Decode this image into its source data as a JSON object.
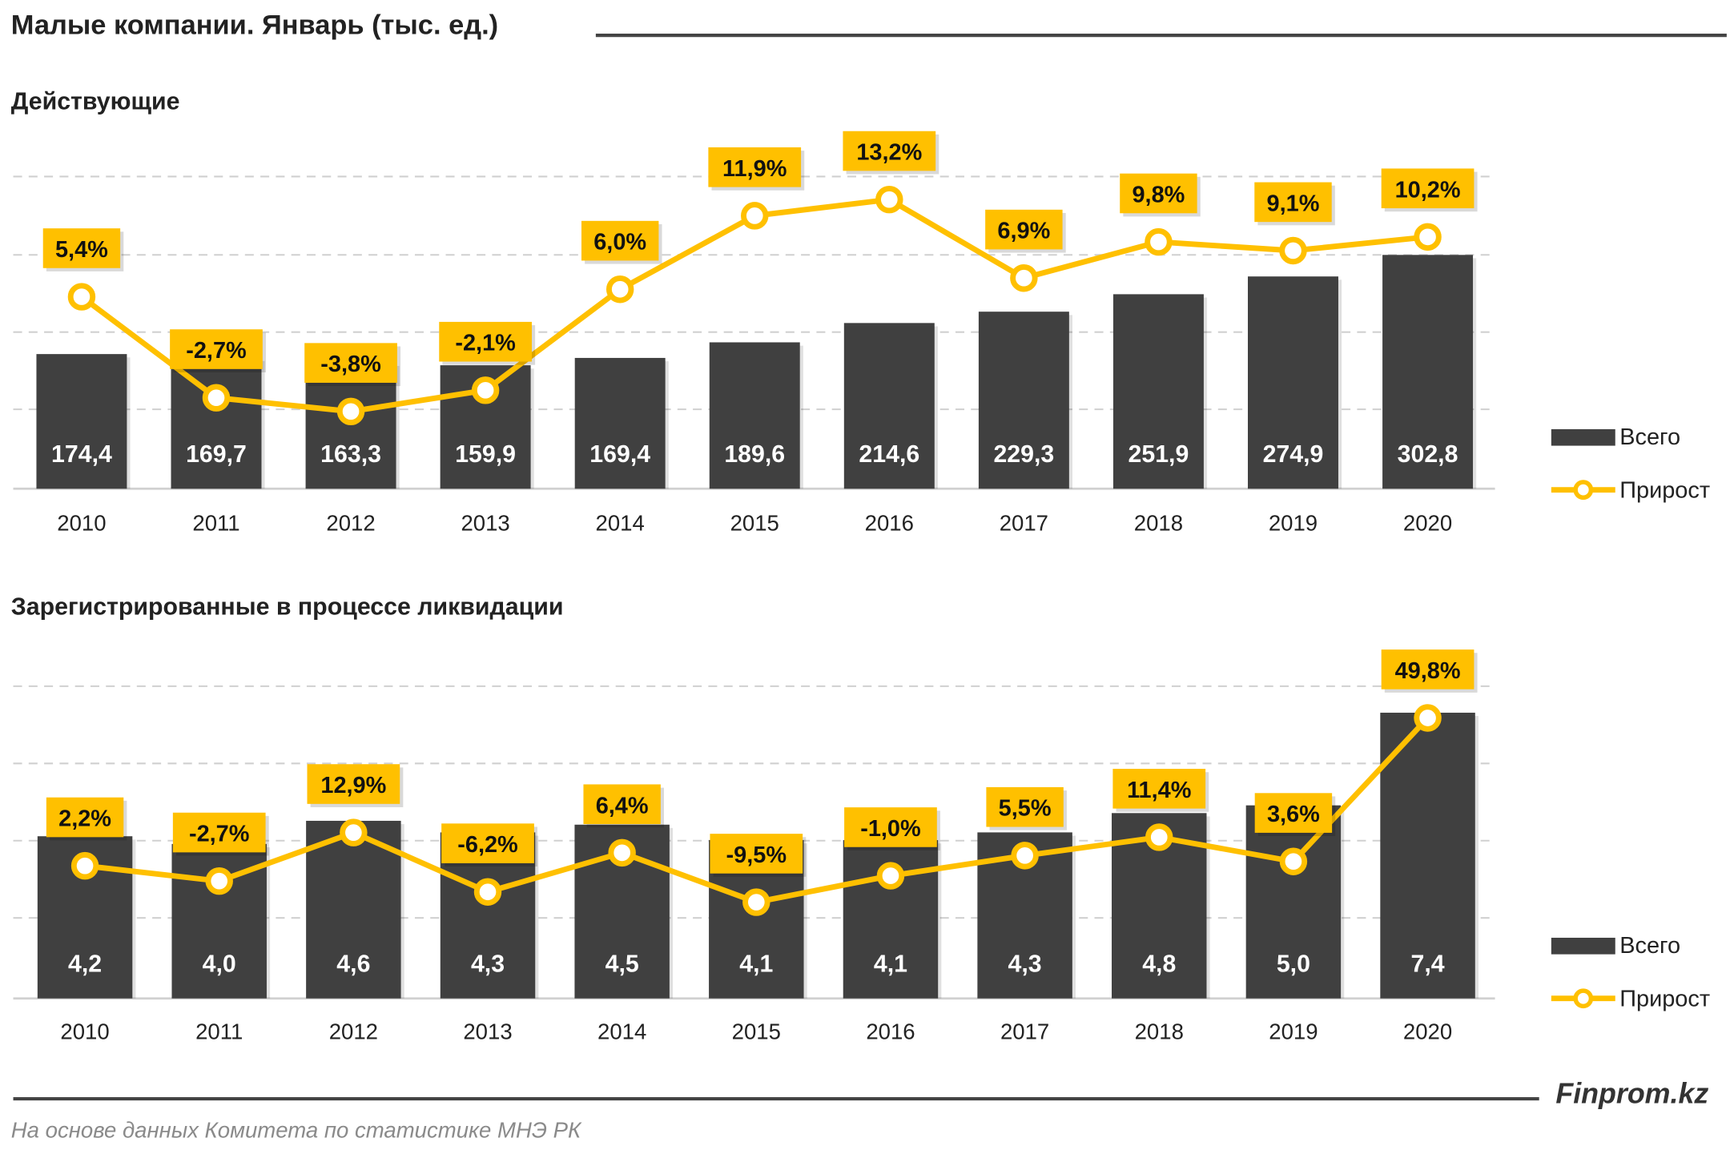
{
  "title": "Малые компании. Январь (тыс. ед.)",
  "source": "На основе данных Комитета по статистике МНЭ РК",
  "brand": "Finprom.kz",
  "colors": {
    "bar": "#404040",
    "line": "#FFC000",
    "label_box": "#FFC000"
  },
  "chart_data": [
    {
      "type": "bar+line",
      "title": "Действующие",
      "categories": [
        "2010",
        "2011",
        "2012",
        "2013",
        "2014",
        "2015",
        "2016",
        "2017",
        "2018",
        "2019",
        "2020"
      ],
      "series": [
        {
          "name": "Всего",
          "type": "bar",
          "values": [
            174.4,
            169.7,
            163.3,
            159.9,
            169.4,
            189.6,
            214.6,
            229.3,
            251.9,
            274.9,
            302.8
          ],
          "labels": [
            "174,4",
            "169,7",
            "163,3",
            "159,9",
            "169,4",
            "189,6",
            "214,6",
            "229,3",
            "251,9",
            "274,9",
            "302,8"
          ]
        },
        {
          "name": "Прирост",
          "type": "line",
          "values": [
            5.4,
            -2.7,
            -3.8,
            -2.1,
            6.0,
            11.9,
            13.2,
            6.9,
            9.8,
            9.1,
            10.2
          ],
          "labels": [
            "5,4%",
            "-2,7%",
            "-3,8%",
            "-2,1%",
            "6,0%",
            "11,9%",
            "13,2%",
            "6,9%",
            "9,8%",
            "9,1%",
            "10,2%"
          ]
        }
      ],
      "grid": true,
      "legend": "right"
    },
    {
      "type": "bar+line",
      "title": "Зарегистрированные  в процессе  ликвидации",
      "categories": [
        "2010",
        "2011",
        "2012",
        "2013",
        "2014",
        "2015",
        "2016",
        "2017",
        "2018",
        "2019",
        "2020"
      ],
      "series": [
        {
          "name": "Всего",
          "type": "bar",
          "values": [
            4.2,
            4.0,
            4.6,
            4.3,
            4.5,
            4.1,
            4.1,
            4.3,
            4.8,
            5.0,
            7.4
          ],
          "labels": [
            "4,2",
            "4,0",
            "4,6",
            "4,3",
            "4,5",
            "4,1",
            "4,1",
            "4,3",
            "4,8",
            "5,0",
            "7,4"
          ]
        },
        {
          "name": "Прирост",
          "type": "line",
          "values": [
            2.2,
            -2.7,
            12.9,
            -6.2,
            6.4,
            -9.5,
            -1.0,
            5.5,
            11.4,
            3.6,
            49.8
          ],
          "labels": [
            "2,2%",
            "-2,7%",
            "12,9%",
            "-6,2%",
            "6,4%",
            "-9,5%",
            "-1,0%",
            "5,5%",
            "11,4%",
            "3,6%",
            "49,8%"
          ]
        }
      ],
      "grid": true,
      "legend": "right"
    }
  ]
}
